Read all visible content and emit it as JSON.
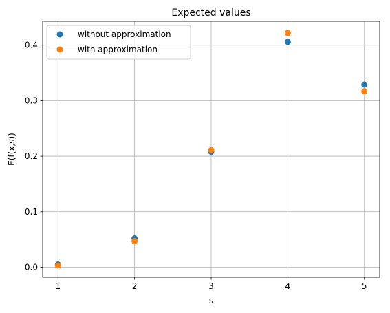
{
  "chart_data": {
    "type": "scatter",
    "title": "Expected values",
    "xlabel": "s",
    "ylabel": "E(f(x,s))",
    "x": [
      1,
      2,
      3,
      4,
      5
    ],
    "xticks": [
      "1",
      "2",
      "3",
      "4",
      "5"
    ],
    "yticks": [
      "0.0",
      "0.1",
      "0.2",
      "0.3",
      "0.4"
    ],
    "xlim": [
      0.8,
      5.2
    ],
    "ylim": [
      -0.018,
      0.443
    ],
    "grid": true,
    "legend_position": "top-left",
    "series": [
      {
        "name": "without approximation",
        "color": "#1f77b4",
        "values": [
          0.005,
          0.052,
          0.208,
          0.406,
          0.329
        ]
      },
      {
        "name": "with approximation",
        "color": "#ff7f0e",
        "values": [
          0.003,
          0.047,
          0.211,
          0.422,
          0.317
        ]
      }
    ]
  }
}
